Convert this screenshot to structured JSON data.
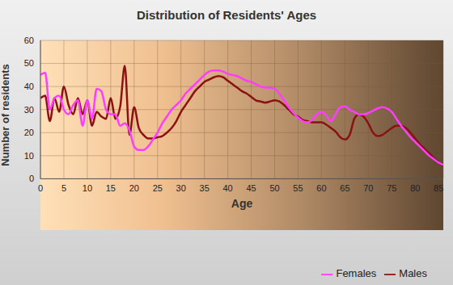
{
  "chart_data": {
    "type": "line",
    "title": "Distribution of Residents' Ages",
    "x_label": "Age",
    "y_label": "Number of residents",
    "x": [
      0,
      1,
      2,
      3,
      4,
      5,
      6,
      7,
      8,
      9,
      10,
      11,
      12,
      13,
      14,
      15,
      16,
      17,
      18,
      19,
      20,
      21,
      22,
      23,
      24,
      25,
      26,
      27,
      28,
      29,
      30,
      31,
      32,
      33,
      34,
      35,
      36,
      37,
      38,
      39,
      40,
      41,
      42,
      43,
      44,
      45,
      46,
      47,
      48,
      49,
      50,
      51,
      52,
      53,
      54,
      55,
      56,
      57,
      58,
      59,
      60,
      61,
      62,
      63,
      64,
      65,
      66,
      67,
      68,
      69,
      70,
      71,
      72,
      73,
      74,
      75,
      76,
      77,
      78,
      79,
      80,
      81,
      82,
      83,
      84,
      85,
      86
    ],
    "series": [
      {
        "name": "Males",
        "color": "#8b1212",
        "values": [
          35,
          36,
          25,
          35,
          29,
          40,
          32,
          28,
          35,
          28,
          34,
          23,
          29,
          27,
          26,
          35,
          26,
          31,
          49,
          19,
          31,
          22,
          19,
          17.5,
          17.5,
          18,
          18.5,
          20,
          22,
          25,
          29,
          32,
          35,
          38,
          40,
          42,
          43,
          44,
          44.5,
          44,
          42.5,
          41,
          39.5,
          38,
          37,
          35.5,
          34,
          33.5,
          33,
          33.5,
          34,
          33.5,
          32,
          30,
          28,
          27,
          25.5,
          25,
          24.5,
          24.5,
          24.5,
          23.5,
          22,
          20.5,
          18,
          17,
          19,
          26,
          28,
          27,
          24,
          20,
          18.5,
          19,
          20.5,
          22,
          23,
          23,
          22,
          20,
          17.5,
          15,
          13,
          11,
          9,
          7,
          5.5
        ]
      },
      {
        "name": "Females",
        "color": "#ff3cff",
        "values": [
          45,
          46,
          30,
          35,
          36,
          30,
          28,
          32,
          34,
          23,
          34,
          26,
          39,
          38,
          30,
          28,
          28,
          23,
          24,
          21,
          14,
          12.5,
          12.5,
          14,
          17,
          20,
          24,
          27,
          30,
          32,
          34,
          37,
          39,
          41,
          43,
          45,
          46.5,
          47,
          47,
          46.5,
          45.5,
          45,
          44.5,
          43.5,
          42.5,
          42,
          41,
          40,
          39.5,
          39.5,
          39,
          37,
          34,
          31,
          28.5,
          26.5,
          25,
          24.5,
          25.5,
          28,
          29,
          27.5,
          25,
          28,
          31,
          31.5,
          30,
          29,
          28,
          28,
          28.5,
          29.5,
          30.5,
          31,
          30.5,
          29,
          26,
          23,
          20.5,
          18,
          16,
          14,
          12,
          10,
          8.5,
          7,
          6
        ]
      }
    ],
    "xlim": [
      0,
      86
    ],
    "xticks": [
      0,
      5,
      10,
      15,
      20,
      25,
      30,
      35,
      40,
      45,
      50,
      55,
      60,
      65,
      70,
      75,
      80,
      85
    ],
    "ylim": [
      0,
      60
    ],
    "yticks": [
      0,
      10,
      20,
      30,
      40,
      50,
      60
    ],
    "grid": true,
    "legend": "bottom right"
  }
}
